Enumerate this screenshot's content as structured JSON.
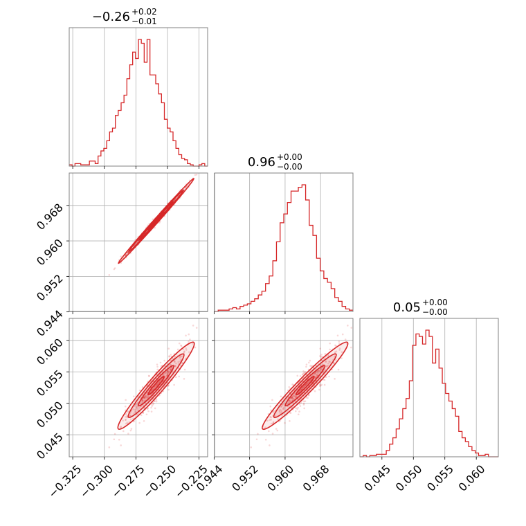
{
  "chart_data": {
    "type": "corner",
    "color": "#d62728",
    "grid": true,
    "titles": [
      {
        "value": "−0.26",
        "plus": "+0.02",
        "minus": "−0.01"
      },
      {
        "value": "0.96",
        "plus": "+0.00",
        "minus": "−0.00"
      },
      {
        "value": "0.05",
        "plus": "+0.00",
        "minus": "−0.00"
      }
    ],
    "params": [
      {
        "range": [
          -0.3278,
          -0.2182
        ],
        "ticks": [
          -0.325,
          -0.3,
          -0.275,
          -0.25,
          -0.225
        ],
        "tick_labels": [
          "−0.325",
          "−0.300",
          "−0.275",
          "−0.250",
          "−0.225"
        ],
        "hist": [
          0.01,
          0.0,
          0.02,
          0.02,
          0.01,
          0.01,
          0.01,
          0.04,
          0.04,
          0.02,
          0.08,
          0.12,
          0.14,
          0.2,
          0.27,
          0.3,
          0.4,
          0.44,
          0.5,
          0.56,
          0.69,
          0.8,
          0.9,
          0.85,
          1.0,
          0.97,
          0.82,
          1.0,
          0.72,
          0.72,
          0.65,
          0.57,
          0.5,
          0.37,
          0.3,
          0.27,
          0.2,
          0.14,
          0.09,
          0.06,
          0.05,
          0.02,
          0.01,
          0.0,
          0.0,
          0.01,
          0.02,
          0.0
        ]
      },
      {
        "range": [
          0.9441,
          0.9753
        ],
        "ticks": [
          0.944,
          0.952,
          0.96,
          0.968
        ],
        "tick_labels": [
          "0.944",
          "0.952",
          "0.960",
          "0.968"
        ],
        "hist": [
          0.0,
          0.01,
          0.01,
          0.01,
          0.02,
          0.03,
          0.02,
          0.04,
          0.05,
          0.06,
          0.08,
          0.1,
          0.13,
          0.16,
          0.22,
          0.28,
          0.4,
          0.55,
          0.7,
          0.77,
          0.86,
          0.95,
          0.95,
          0.98,
          1.0,
          0.88,
          0.68,
          0.6,
          0.42,
          0.32,
          0.26,
          0.23,
          0.18,
          0.11,
          0.08,
          0.04,
          0.02,
          0.01
        ]
      },
      {
        "range": [
          0.0415,
          0.0635
        ],
        "ticks": [
          0.045,
          0.05,
          0.055,
          0.06
        ],
        "tick_labels": [
          "0.045",
          "0.050",
          "0.055",
          "0.060"
        ],
        "hist": [
          0.0,
          0.01,
          0.0,
          0.01,
          0.01,
          0.02,
          0.02,
          0.02,
          0.05,
          0.1,
          0.15,
          0.22,
          0.3,
          0.38,
          0.46,
          0.6,
          0.88,
          0.97,
          0.95,
          0.89,
          1.0,
          0.95,
          0.74,
          0.85,
          0.7,
          0.58,
          0.5,
          0.44,
          0.38,
          0.32,
          0.2,
          0.15,
          0.12,
          0.08,
          0.05,
          0.03,
          0.01,
          0.01,
          0.02,
          0.0,
          0.0,
          0.0
        ]
      }
    ]
  }
}
